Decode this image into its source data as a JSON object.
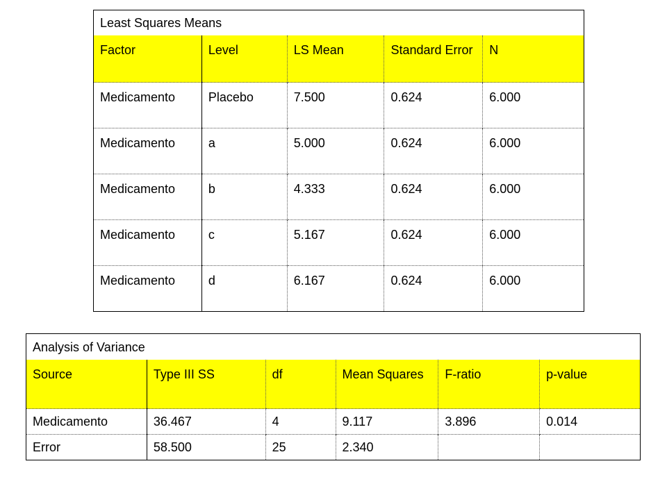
{
  "lsm": {
    "title": "Least Squares Means",
    "headers": [
      "Factor",
      "Level",
      "LS Mean",
      "Standard Error",
      "N"
    ],
    "rows": [
      [
        "Medicamento",
        "Placebo",
        "7.500",
        "0.624",
        "6.000"
      ],
      [
        "Medicamento",
        "a",
        "5.000",
        "0.624",
        "6.000"
      ],
      [
        "Medicamento",
        "b",
        "4.333",
        "0.624",
        "6.000"
      ],
      [
        "Medicamento",
        "c",
        "5.167",
        "0.624",
        "6.000"
      ],
      [
        "Medicamento",
        "d",
        "6.167",
        "0.624",
        "6.000"
      ]
    ]
  },
  "anova": {
    "title": "Analysis of Variance",
    "headers": [
      "Source",
      "Type III SS",
      "df",
      "Mean Squares",
      "F-ratio",
      "p-value"
    ],
    "rows": [
      [
        "Medicamento",
        "36.467",
        "4",
        "9.117",
        "3.896",
        "0.014"
      ],
      [
        "Error",
        "58.500",
        "25",
        "2.340",
        "",
        ""
      ]
    ]
  },
  "colors": {
    "header_background": "#ffff00",
    "text": "#000000",
    "border": "#000000"
  }
}
